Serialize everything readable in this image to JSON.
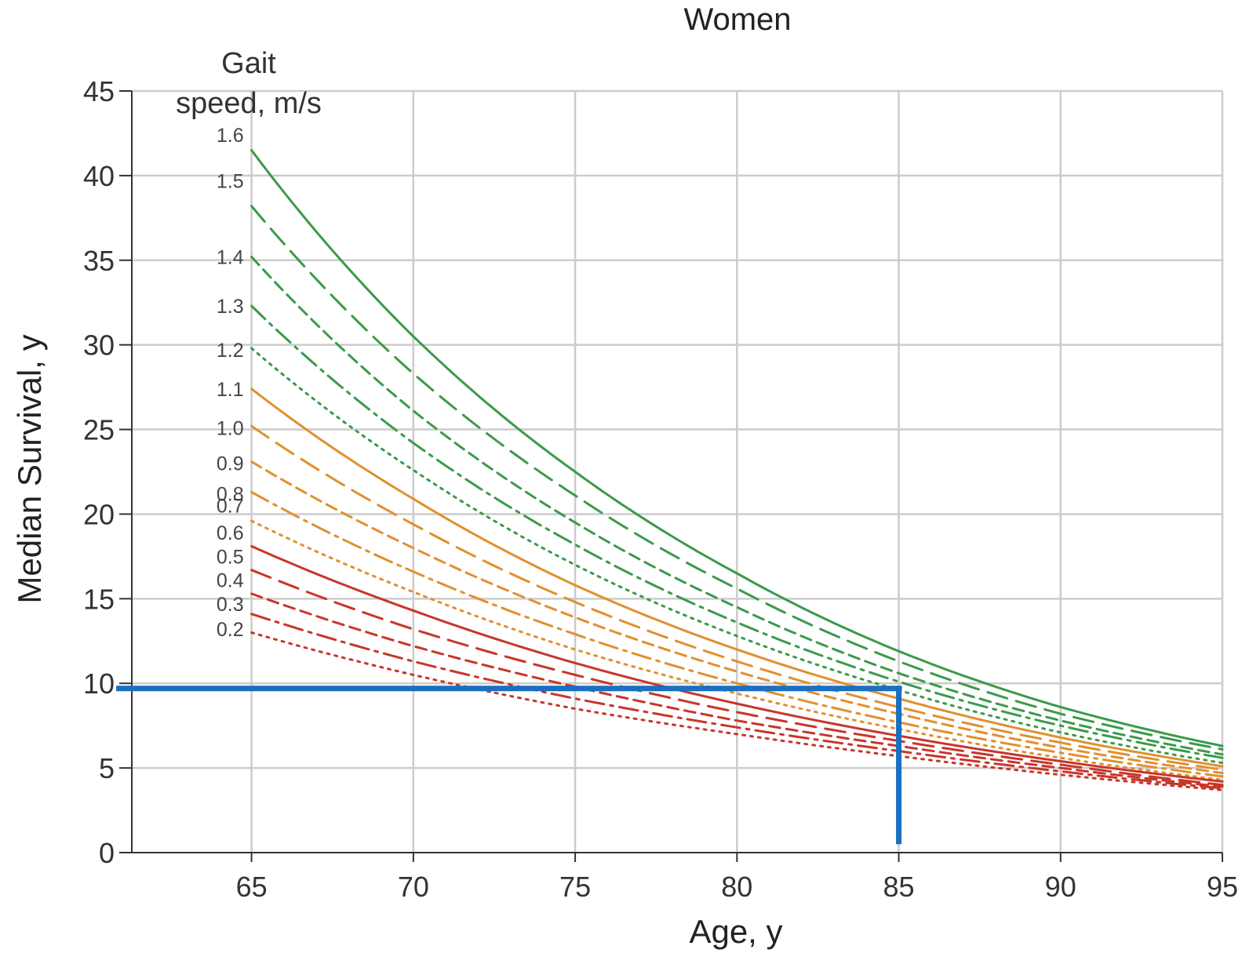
{
  "chart_data": {
    "type": "line",
    "title": "Women",
    "xlabel": "Age, y",
    "ylabel": "Median Survival, y",
    "legend_title": [
      "Gait",
      "speed, m/s"
    ],
    "xlim": [
      61.3,
      95
    ],
    "ylim": [
      0,
      45
    ],
    "x_ticks": [
      65,
      70,
      75,
      80,
      85,
      90,
      95
    ],
    "y_ticks": [
      0,
      5,
      10,
      15,
      20,
      25,
      30,
      35,
      40,
      45
    ],
    "grid": true,
    "legend_placement": "inline-left",
    "colors": {
      "green": "#3a9a4a",
      "orange": "#e0902e",
      "red": "#c8362a",
      "highlight": "#1a6fc0"
    },
    "x": [
      65,
      70,
      75,
      80,
      85,
      90,
      95
    ],
    "series": [
      {
        "name": "1.6",
        "color": "green",
        "dash": "solid",
        "values": [
          41.5,
          30.5,
          22.5,
          16.5,
          11.9,
          8.6,
          6.3
        ]
      },
      {
        "name": "1.5",
        "color": "green",
        "dash": "longdash",
        "values": [
          38.2,
          28.3,
          21.1,
          15.6,
          11.3,
          8.2,
          6.1
        ]
      },
      {
        "name": "1.4",
        "color": "green",
        "dash": "dash",
        "values": [
          35.2,
          26.1,
          19.5,
          14.5,
          10.6,
          7.8,
          5.8
        ]
      },
      {
        "name": "1.3",
        "color": "green",
        "dash": "dashdot",
        "values": [
          32.3,
          24.2,
          18.2,
          13.6,
          10.1,
          7.5,
          5.6
        ]
      },
      {
        "name": "1.2",
        "color": "green",
        "dash": "dot",
        "values": [
          29.8,
          22.6,
          17.0,
          12.8,
          9.6,
          7.1,
          5.3
        ]
      },
      {
        "name": "1.1",
        "color": "orange",
        "dash": "solid",
        "values": [
          27.4,
          20.9,
          15.8,
          12.0,
          9.1,
          6.8,
          5.1
        ]
      },
      {
        "name": "1.0",
        "color": "orange",
        "dash": "longdash",
        "values": [
          25.2,
          19.4,
          14.8,
          11.3,
          8.6,
          6.5,
          4.9
        ]
      },
      {
        "name": "0.9",
        "color": "orange",
        "dash": "dash",
        "values": [
          23.1,
          18.0,
          13.9,
          10.7,
          8.2,
          6.2,
          4.7
        ]
      },
      {
        "name": "0.8",
        "color": "orange",
        "dash": "dashdot",
        "values": [
          21.3,
          16.6,
          12.9,
          10.0,
          7.7,
          5.9,
          4.5
        ]
      },
      {
        "name": "0.7",
        "color": "orange",
        "dash": "dot",
        "values": [
          19.6,
          15.4,
          12.0,
          9.4,
          7.3,
          5.6,
          4.3
        ]
      },
      {
        "name": "0.6",
        "color": "red",
        "dash": "solid",
        "values": [
          18.1,
          14.3,
          11.2,
          8.8,
          6.9,
          5.4,
          4.2
        ]
      },
      {
        "name": "0.5",
        "color": "red",
        "dash": "longdash",
        "values": [
          16.7,
          13.2,
          10.5,
          8.3,
          6.6,
          5.2,
          4.0
        ]
      },
      {
        "name": "0.4",
        "color": "red",
        "dash": "dash",
        "values": [
          15.3,
          12.2,
          9.8,
          7.8,
          6.3,
          5.0,
          3.9
        ]
      },
      {
        "name": "0.3",
        "color": "red",
        "dash": "dashdot",
        "values": [
          14.1,
          11.3,
          9.1,
          7.4,
          6.0,
          4.8,
          3.8
        ]
      },
      {
        "name": "0.2",
        "color": "red",
        "dash": "dot",
        "values": [
          13.0,
          10.5,
          8.5,
          7.0,
          5.7,
          4.6,
          3.7
        ]
      }
    ],
    "label_y_values": [
      42.4,
      39.7,
      35.2,
      32.3,
      29.7,
      27.4,
      25.1,
      23.0,
      21.2,
      20.5,
      18.9,
      17.5,
      16.1,
      14.7,
      13.2
    ],
    "annotation": {
      "type": "reference-lines",
      "color": "highlight",
      "horizontal": {
        "from_x": 61.3,
        "to_x": 85,
        "y": 9.7
      },
      "vertical": {
        "x": 85,
        "from_y": 9.7,
        "to_y": 0.5
      }
    }
  }
}
